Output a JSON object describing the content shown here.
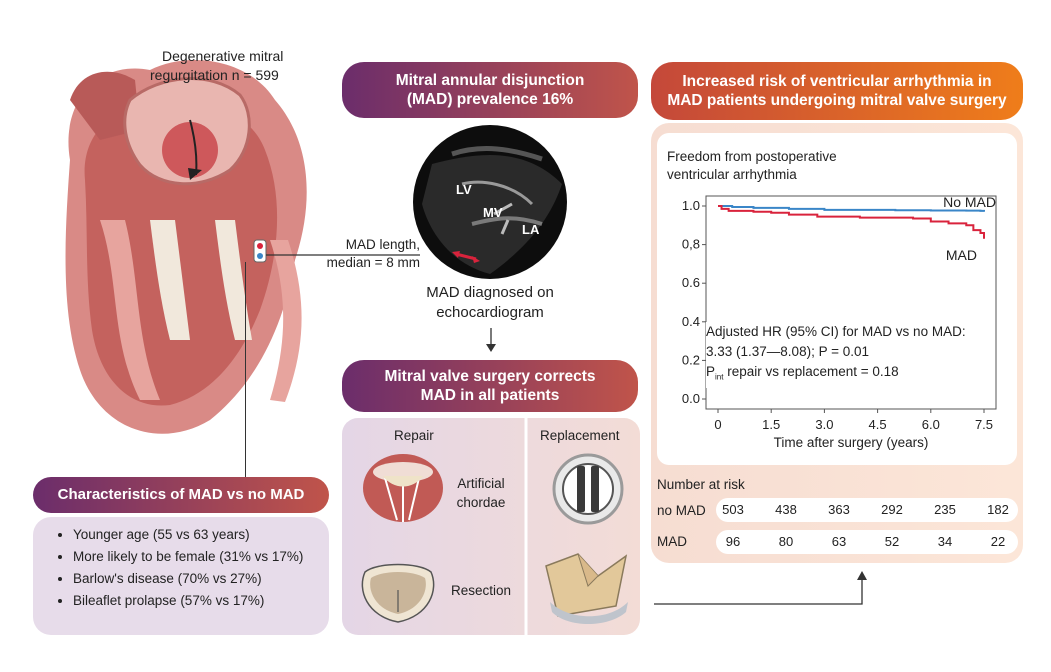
{
  "heart": {
    "label_line1": "Degenerative mitral",
    "label_line2": "regurgitation n = 599",
    "mad_length_line1": "MAD length,",
    "mad_length_line2": "median = 8 mm"
  },
  "characteristics": {
    "title": "Characteristics of MAD vs no MAD",
    "items": [
      "Younger age (55 vs 63 years)",
      "More likely to be female (31% vs 17%)",
      "Barlow's disease (70% vs 27%)",
      "Bileaflet prolapse (57% vs 17%)"
    ]
  },
  "prevalence": {
    "title_line1": "Mitral annular disjunction",
    "title_line2": "(MAD) prevalence 16%",
    "echo_labels": [
      "LV",
      "MV",
      "LA"
    ],
    "diagnosed_line1": "MAD diagnosed on",
    "diagnosed_line2": "echocardiogram"
  },
  "surgery": {
    "title_line1": "Mitral valve surgery corrects",
    "title_line2": "MAD in all patients",
    "repair_label": "Repair",
    "replacement_label": "Replacement",
    "chordae_line1": "Artificial",
    "chordae_line2": "chordae",
    "resection_label": "Resection"
  },
  "risk": {
    "title_line1": "Increased risk of ventricular arrhythmia in",
    "title_line2": "MAD patients undergoing mitral valve surgery"
  },
  "chart_data": {
    "type": "line",
    "title_line1": "Freedom from postoperative",
    "title_line2": "ventricular arrhythmia",
    "xlabel": "Time after surgery (years)",
    "ylabel": "",
    "xlim": [
      0,
      7.5
    ],
    "ylim": [
      0.0,
      1.0
    ],
    "x_ticks": [
      "0",
      "1.5",
      "3.0",
      "4.5",
      "6.0",
      "7.5"
    ],
    "y_ticks": [
      "1.0",
      "0.8",
      "0.6",
      "0.4",
      "0.2",
      "0.0"
    ],
    "series": [
      {
        "name": "No MAD",
        "color": "#3a86c8",
        "points": [
          [
            0,
            1.0
          ],
          [
            0.4,
            0.995
          ],
          [
            1.0,
            0.99
          ],
          [
            1.5,
            0.99
          ],
          [
            2.0,
            0.985
          ],
          [
            3.0,
            0.98
          ],
          [
            4.0,
            0.98
          ],
          [
            5.0,
            0.978
          ],
          [
            6.0,
            0.977
          ],
          [
            7.0,
            0.976
          ],
          [
            7.4,
            0.975
          ],
          [
            7.5,
            0.97
          ]
        ]
      },
      {
        "name": "MAD",
        "color": "#d9233c",
        "points": [
          [
            0,
            1.0
          ],
          [
            0.1,
            0.985
          ],
          [
            0.3,
            0.975
          ],
          [
            1.0,
            0.97
          ],
          [
            1.5,
            0.965
          ],
          [
            2.0,
            0.955
          ],
          [
            2.8,
            0.945
          ],
          [
            4.0,
            0.94
          ],
          [
            5.0,
            0.94
          ],
          [
            5.5,
            0.935
          ],
          [
            6.0,
            0.92
          ],
          [
            6.5,
            0.91
          ],
          [
            7.0,
            0.9
          ],
          [
            7.2,
            0.875
          ],
          [
            7.4,
            0.86
          ],
          [
            7.5,
            0.83
          ]
        ]
      }
    ],
    "annotation_line1": "Adjusted HR (95% CI) for MAD vs no MAD:",
    "annotation_line2": "3.33 (1.37—8.08); P = 0.01",
    "annotation_line3_p": "P",
    "annotation_line3_sub": "int",
    "annotation_line3_rest": " repair vs replacement = 0.18",
    "risk_table": {
      "title": "Number at risk",
      "rows": [
        {
          "label": "no MAD",
          "values": [
            "503",
            "438",
            "363",
            "292",
            "235",
            "182"
          ]
        },
        {
          "label": "MAD",
          "values": [
            "96",
            "80",
            "63",
            "52",
            "34",
            "22"
          ]
        }
      ]
    }
  },
  "colors": {
    "purple": "#6b2d6b",
    "orange": "#ef7a1a",
    "panel_purple": "#ece0ee",
    "panel_orange": "#fbe6da"
  }
}
